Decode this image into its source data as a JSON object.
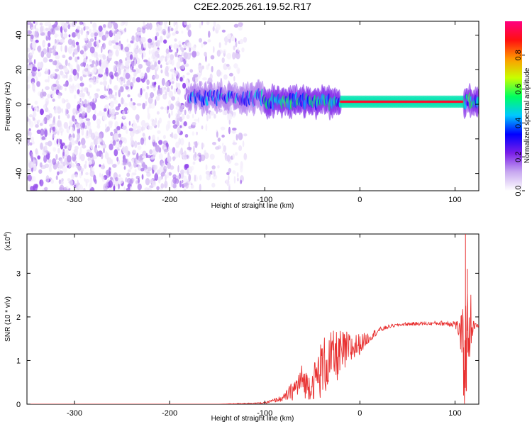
{
  "title": "C2E2.2025.261.19.52.R17",
  "chart_data": [
    {
      "type": "heatmap",
      "xlabel": "Height of straight line (km)",
      "ylabel": "Frequency (Hz)",
      "xlim": [
        -350,
        125
      ],
      "ylim": [
        -50,
        48
      ],
      "xticks": [
        -300,
        -200,
        -100,
        0,
        100
      ],
      "yticks": [
        -40,
        -20,
        0,
        20,
        40
      ],
      "colorbar": {
        "label": "Normalized spectral amplitude",
        "range": [
          0.0,
          1.0
        ],
        "ticks": [
          "0.0",
          "0.2",
          "0.4",
          "0.6",
          "0.8"
        ],
        "colors": [
          "#ffffff",
          "#c8a8f0",
          "#7a1ee8",
          "#0000ff",
          "#00c8ff",
          "#00ff60",
          "#c8ff00",
          "#ff9900",
          "#ff1010",
          "#ff0080"
        ]
      },
      "regions": [
        {
          "x_range": [
            -350,
            -180
          ],
          "description": "broadband noise",
          "amplitude": [
            0.02,
            0.2
          ]
        },
        {
          "x_range": [
            -180,
            -120
          ],
          "description": "sparse noise",
          "amplitude": [
            0.02,
            0.15
          ]
        },
        {
          "x_range": [
            -180,
            -100
          ],
          "center_hz": 4,
          "amplitude": [
            0.2,
            0.5
          ]
        },
        {
          "x_range": [
            -100,
            -20
          ],
          "center_hz": 2,
          "amplitude": [
            0.3,
            0.6
          ]
        },
        {
          "x_range": [
            -20,
            110
          ],
          "center_hz": 1.5,
          "amplitude": [
            0.85,
            0.95
          ]
        },
        {
          "x_range": [
            110,
            125
          ],
          "center_hz": 2,
          "amplitude": [
            0.3,
            0.6
          ]
        }
      ]
    },
    {
      "type": "line",
      "xlabel": "Height of straight line (km)",
      "ylabel": "SNR (10 * v/v)",
      "yscale_label": "(x10",
      "yscale_exp": "4",
      "xlim": [
        -350,
        125
      ],
      "ylim": [
        0,
        3.9
      ],
      "xticks": [
        -300,
        -200,
        -100,
        0,
        100
      ],
      "yticks": [
        0,
        1,
        2,
        3
      ],
      "color": "#e83030",
      "x": [
        -350,
        -150,
        -100,
        -80,
        -70,
        -60,
        -55,
        -50,
        -40,
        -30,
        -20,
        -10,
        0,
        10,
        20,
        30,
        40,
        50,
        60,
        70,
        80,
        90,
        100,
        105,
        110,
        115,
        120,
        125
      ],
      "y": [
        0.0,
        0.0,
        0.03,
        0.15,
        0.35,
        0.6,
        0.45,
        0.5,
        0.9,
        1.1,
        1.2,
        1.3,
        1.4,
        1.55,
        1.7,
        1.78,
        1.82,
        1.84,
        1.85,
        1.85,
        1.86,
        1.86,
        1.86,
        1.7,
        1.2,
        2.0,
        1.8,
        1.8
      ],
      "y_spread": [
        0.0,
        0.0,
        0.02,
        0.1,
        0.3,
        0.5,
        0.4,
        0.45,
        0.9,
        0.8,
        0.7,
        0.5,
        0.3,
        0.15,
        0.08,
        0.05,
        0.04,
        0.05,
        0.05,
        0.05,
        0.06,
        0.08,
        0.12,
        0.3,
        1.6,
        1.2,
        0.1,
        0.05
      ],
      "spikes": [
        {
          "x": 111,
          "y": 3.9
        },
        {
          "x": 113,
          "y": 3.1
        },
        {
          "x": 109,
          "y": 0.2
        },
        {
          "x": 112,
          "y": 0.3
        }
      ]
    }
  ]
}
